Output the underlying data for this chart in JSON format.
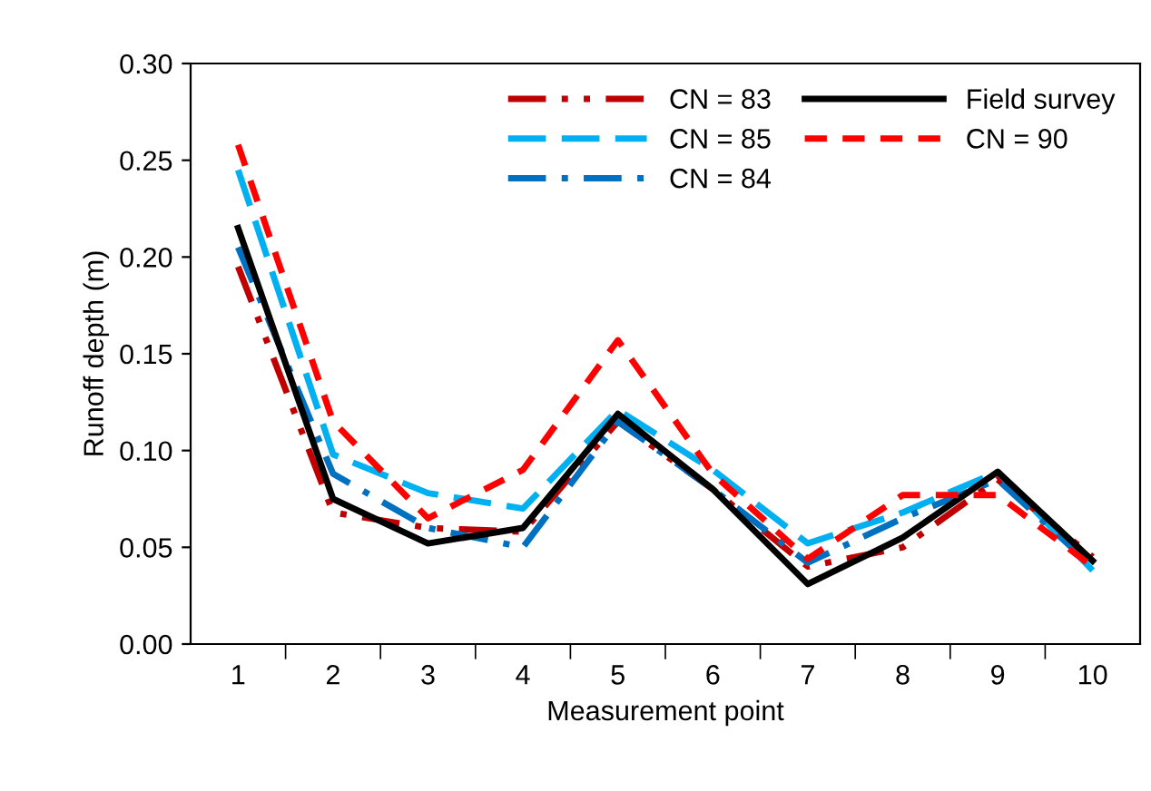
{
  "chart_data": {
    "type": "line",
    "xlabel": "Measurement point",
    "ylabel": "Runoff depth (m)",
    "categories": [
      "1",
      "2",
      "3",
      "4",
      "5",
      "6",
      "7",
      "8",
      "9",
      "10"
    ],
    "ylim": [
      0,
      0.3
    ],
    "yticks": [
      {
        "value": 0,
        "label": "0.00"
      },
      {
        "value": 0.05,
        "label": "0.05"
      },
      {
        "value": 0.1,
        "label": "0.10"
      },
      {
        "value": 0.15,
        "label": "0.15"
      },
      {
        "value": 0.2,
        "label": "0.20"
      },
      {
        "value": 0.25,
        "label": "0.25"
      },
      {
        "value": 0.3,
        "label": "0.30"
      }
    ],
    "grid": false,
    "legend": "top right",
    "marker": "none",
    "series": [
      {
        "name": "CN = 83",
        "color": "#c00000",
        "line_style": "dashdotdot",
        "values": [
          0.195,
          0.068,
          0.06,
          0.058,
          0.115,
          0.08,
          0.04,
          0.05,
          0.085,
          0.045
        ]
      },
      {
        "name": "CN = 85",
        "color": "#00b0f0",
        "line_style": "dashed",
        "values": [
          0.245,
          0.098,
          0.078,
          0.07,
          0.121,
          0.09,
          0.052,
          0.068,
          0.089,
          0.038
        ]
      },
      {
        "name": "CN = 84",
        "color": "#0070c0",
        "line_style": "dashdot",
        "values": [
          0.205,
          0.088,
          0.06,
          0.05,
          0.115,
          0.08,
          0.042,
          0.065,
          0.085,
          0.04
        ]
      },
      {
        "name": "Field survey",
        "color": "#000000",
        "line_style": "solid",
        "values": [
          0.215,
          0.075,
          0.052,
          0.06,
          0.119,
          0.08,
          0.031,
          0.055,
          0.089,
          0.043
        ]
      },
      {
        "name": "CN = 90",
        "color": "#ff0000",
        "line_style": "shortdashed",
        "values": [
          0.258,
          0.115,
          0.065,
          0.09,
          0.157,
          0.088,
          0.044,
          0.077,
          0.077,
          0.04
        ]
      }
    ]
  }
}
